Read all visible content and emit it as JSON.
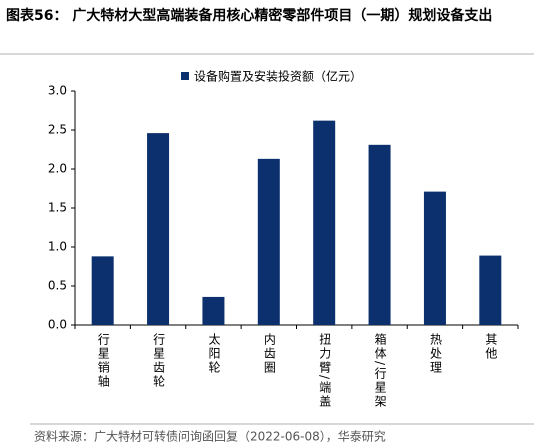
{
  "chart_data": {
    "type": "bar",
    "title": "图表56： 广大特材大型高端装备用核心精密零部件项目（一期）规划设备支出",
    "categories": [
      "行星销轴",
      "行星齿轮",
      "太阳轮",
      "内齿圈",
      "扭力臂/端盖",
      "箱体/行星架",
      "热处理",
      "其他"
    ],
    "series": [
      {
        "name": "设备购置及安装投资额（亿元）",
        "color": "#0c2f6e",
        "values": [
          0.88,
          2.46,
          0.36,
          2.13,
          2.62,
          2.31,
          1.71,
          0.89
        ]
      }
    ],
    "ylim": [
      0,
      3
    ],
    "yticks": [
      {
        "value": 0,
        "label": "0.0"
      },
      0.5,
      {
        "value": 1,
        "label": "1.0"
      },
      1.5,
      {
        "value": 2,
        "label": "2.0"
      },
      2.5,
      {
        "value": 3,
        "label": "3.0"
      }
    ],
    "grid": false,
    "legend": "top",
    "source": "资料来源：广大特材可转债问询函回复（2022-06-08），华泰研究"
  }
}
